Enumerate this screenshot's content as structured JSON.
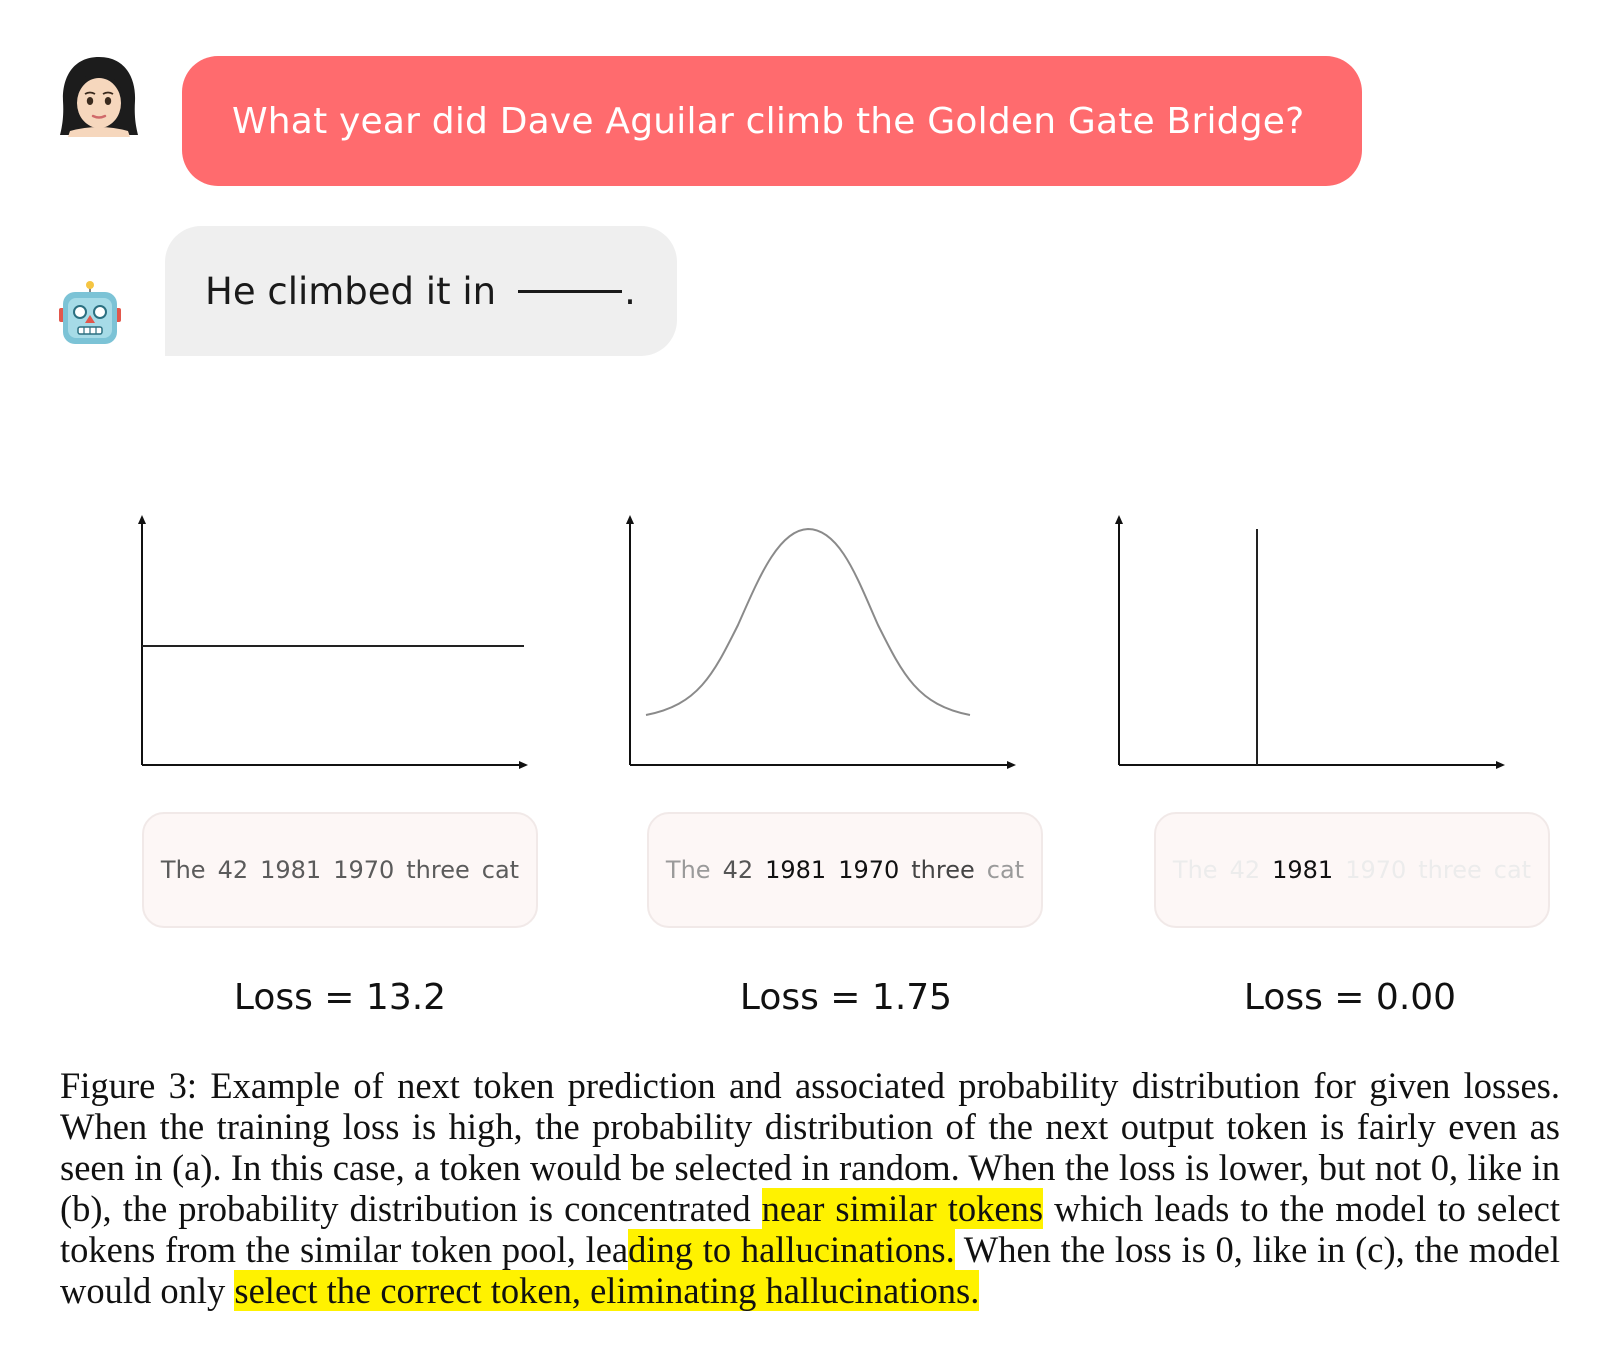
{
  "chat": {
    "user_avatar": "woman-face-icon",
    "bot_avatar": "robot-face-icon",
    "user_message": "What year did Dave Aguilar climb the Golden Gate Bridge?",
    "bot_message": "He climbed it in",
    "bot_message_end": "."
  },
  "panels": [
    {
      "tokens": [
        {
          "text": "The",
          "color": "#5b5b5b"
        },
        {
          "text": "42",
          "color": "#5b5b5b"
        },
        {
          "text": "1981",
          "color": "#5b5b5b"
        },
        {
          "text": "1970",
          "color": "#5b5b5b"
        },
        {
          "text": "three",
          "color": "#5b5b5b"
        },
        {
          "text": "cat",
          "color": "#5b5b5b"
        }
      ],
      "loss": "Loss = 13.2"
    },
    {
      "tokens": [
        {
          "text": "The",
          "color": "#9a9a9a"
        },
        {
          "text": "42",
          "color": "#555555"
        },
        {
          "text": "1981",
          "color": "#111111"
        },
        {
          "text": "1970",
          "color": "#111111"
        },
        {
          "text": "three",
          "color": "#444444"
        },
        {
          "text": "cat",
          "color": "#9a9a9a"
        }
      ],
      "loss": "Loss = 1.75"
    },
    {
      "tokens": [
        {
          "text": "The",
          "color": "#ececec"
        },
        {
          "text": "42",
          "color": "#ececec"
        },
        {
          "text": "1981",
          "color": "#111111"
        },
        {
          "text": "1970",
          "color": "#ececec"
        },
        {
          "text": "three",
          "color": "#ececec"
        },
        {
          "text": "cat",
          "color": "#ececec"
        }
      ],
      "loss": "Loss = 0.00"
    }
  ],
  "chart_data": [
    {
      "type": "line",
      "shape": "uniform",
      "x": [
        "The",
        "42",
        "1981",
        "1970",
        "three",
        "cat"
      ],
      "values": [
        0.5,
        0.5,
        0.5,
        0.5,
        0.5,
        0.5
      ]
    },
    {
      "type": "line",
      "shape": "gaussian",
      "x": [
        "The",
        "42",
        "1981",
        "1970",
        "three",
        "cat"
      ],
      "peak": "1981/1970"
    },
    {
      "type": "line",
      "shape": "spike",
      "x": [
        "The",
        "42",
        "1981",
        "1970",
        "three",
        "cat"
      ],
      "peak": "1981"
    }
  ],
  "caption": {
    "text_1": "Figure 3: Example of next token prediction and associated probability distribution for given losses. When the training loss is high, the probability distribution of the next output token is fairly even as seen in (a). In this case, a token would be selected in random. When the loss is lower, but not 0, like in (b), the probability distribution is concentrated ",
    "highlight_1": "near similar tokens",
    "text_2": " which leads to the model to select tokens from the similar token pool, lea",
    "highlight_2": "ding to hallucinations.",
    "text_3": " When the loss is 0, like in (c), the model would only ",
    "highlight_3": "select the correct token, eliminating hallucinations.",
    "highlight_color": "#fff200"
  }
}
